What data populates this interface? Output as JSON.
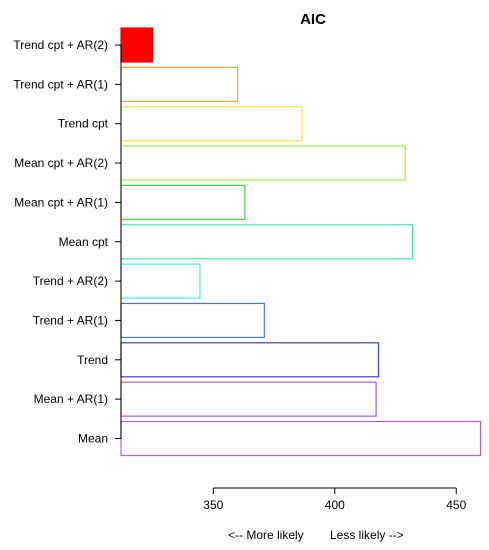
{
  "chart_data": {
    "type": "bar",
    "orientation": "horizontal",
    "title": "AIC",
    "categories": [
      "Trend cpt + AR(2)",
      "Trend cpt + AR(1)",
      "Trend cpt",
      "Mean cpt + AR(2)",
      "Mean cpt + AR(1)",
      "Mean cpt",
      "Trend + AR(2)",
      "Trend + AR(1)",
      "Trend",
      "Mean + AR(1)",
      "Mean"
    ],
    "values": [
      325,
      360,
      386.5,
      429,
      363,
      432,
      344.5,
      371,
      418,
      417,
      460
    ],
    "colors": [
      "#ff0000",
      "#ffa040",
      "#ffe640",
      "#a0f040",
      "#40d840",
      "#40e8a8",
      "#40e8e8",
      "#4078e0",
      "#4040c0",
      "#a060d0",
      "#c060c0"
    ],
    "filled": [
      true,
      false,
      false,
      false,
      false,
      false,
      false,
      false,
      false,
      false,
      false
    ],
    "xlim": [
      312,
      461
    ],
    "x_ticks": [
      350,
      400,
      450
    ],
    "x_tick_labels": [
      "350",
      "400",
      "450"
    ],
    "xlabel": "",
    "ylabel": "",
    "legend": "none",
    "grid": false,
    "footer_left": "<-- More likely",
    "footer_right": "Less likely -->"
  }
}
